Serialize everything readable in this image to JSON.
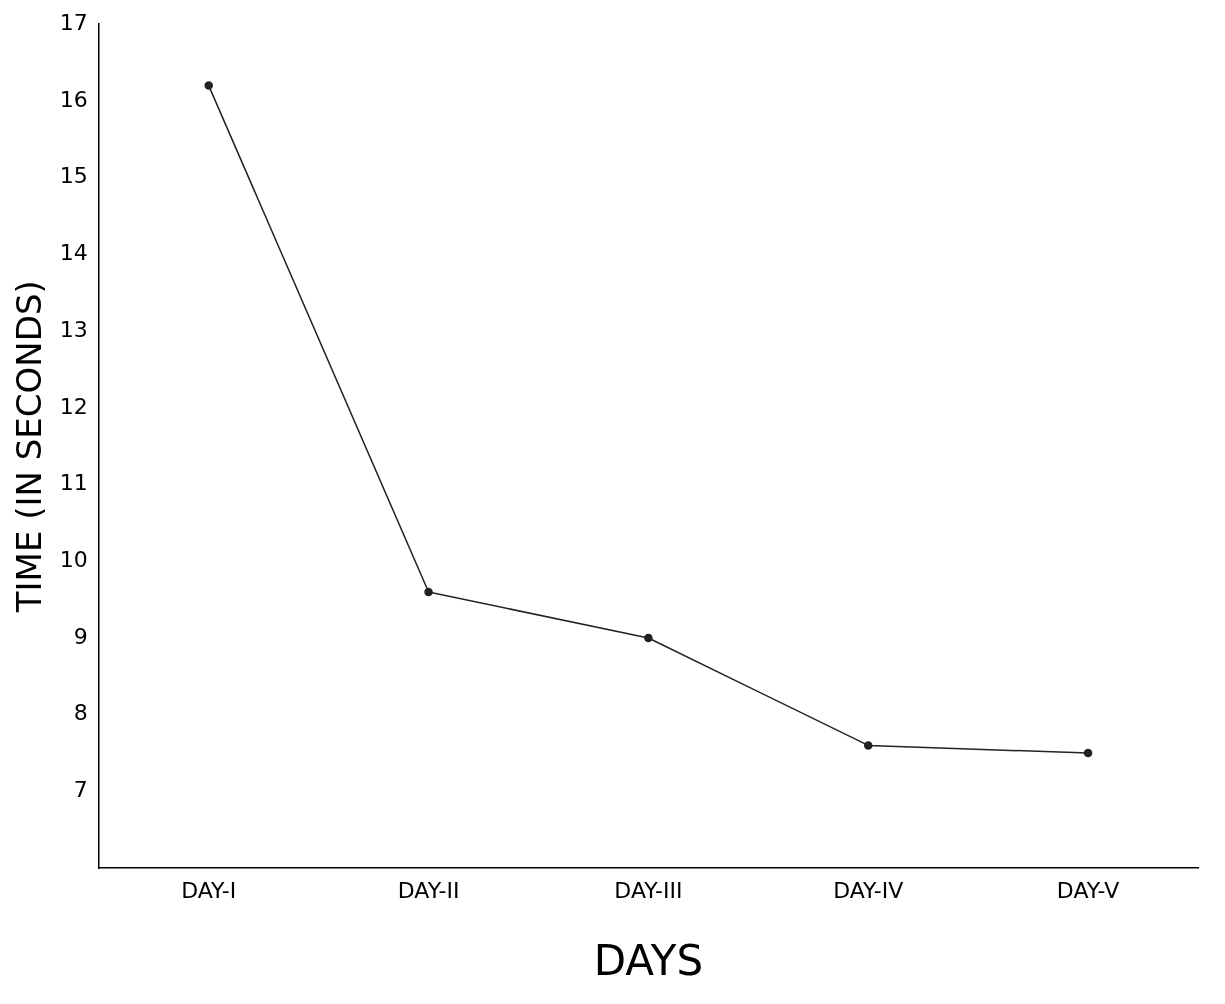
{
  "chart_data": {
    "type": "line",
    "xlabel": "DAYS",
    "ylabel": "TIME (IN SECONDS)",
    "categories": [
      "DAY-I",
      "DAY-II",
      "DAY-III",
      "DAY-IV",
      "DAY-V"
    ],
    "series": [
      {
        "color": "#222222",
        "values": [
          16.2,
          9.6,
          9.0,
          7.6,
          7.5
        ]
      }
    ],
    "ylim": [
      6,
      17
    ],
    "yticks": [
      7,
      8,
      9,
      10,
      11,
      12,
      13,
      14,
      15,
      16,
      17
    ],
    "grid": false,
    "legend": false,
    "marker": "circle",
    "line_style": "solid"
  }
}
